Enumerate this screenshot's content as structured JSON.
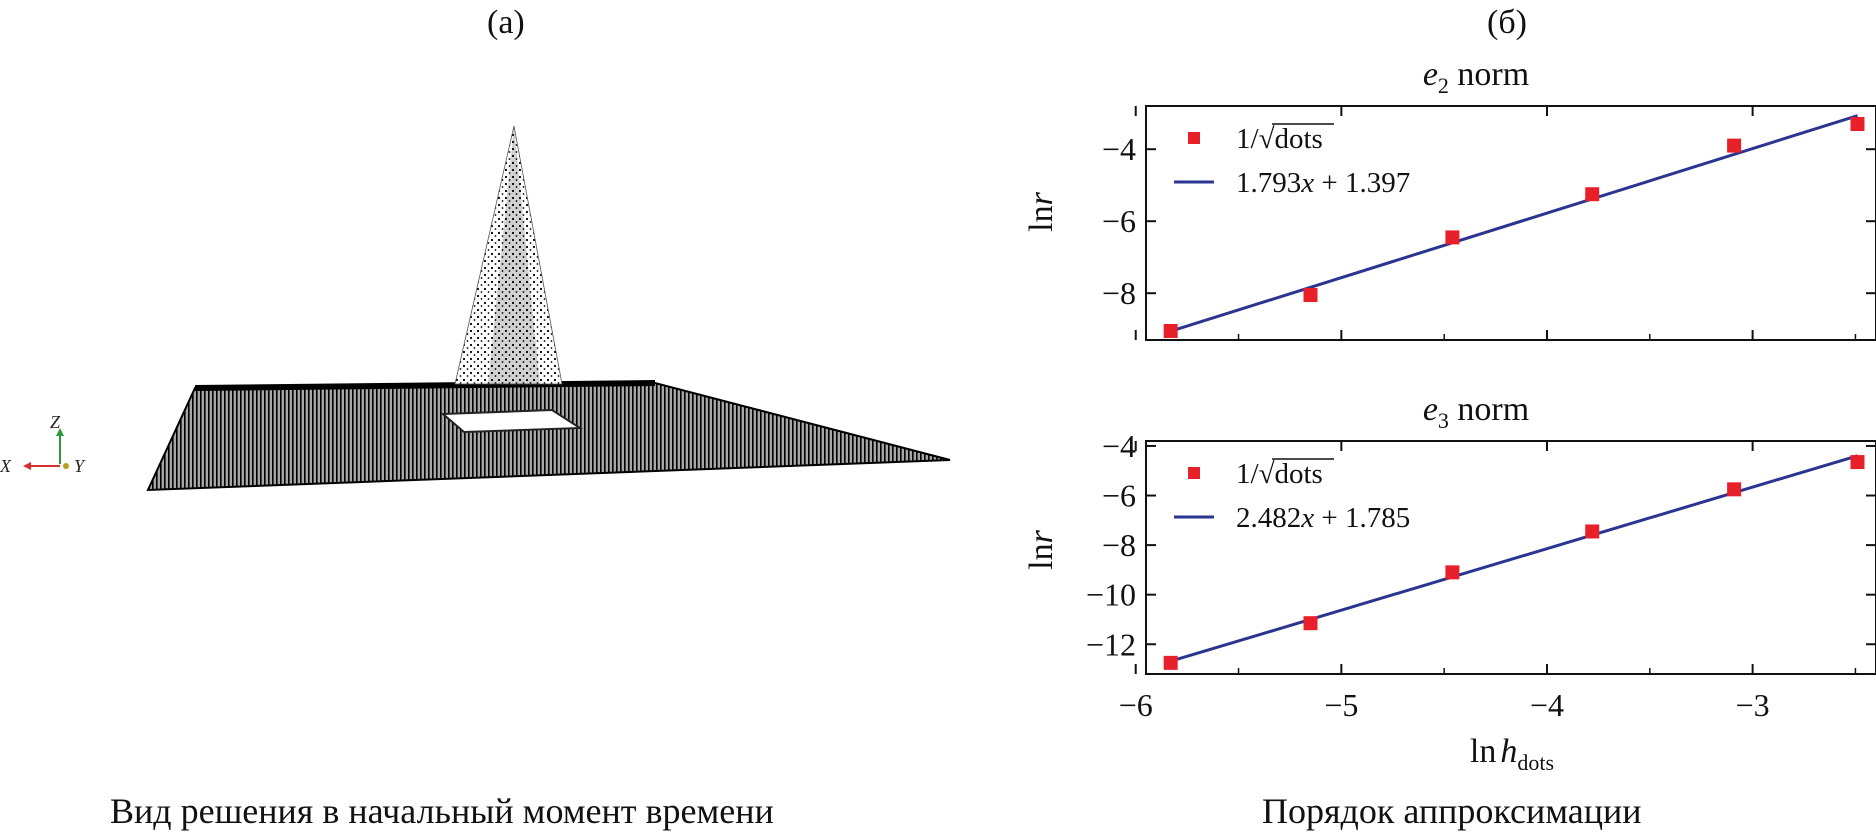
{
  "panel_a": {
    "label": "(а)",
    "caption": "Вид решения в начальный момент времени",
    "axes": {
      "z": "Z",
      "x": "X",
      "y": "Y"
    }
  },
  "panel_b": {
    "label": "(б)",
    "caption": "Порядок аппроксимации",
    "xlabel_main": "ln",
    "xlabel_h": "h",
    "xlabel_sub": "dots"
  },
  "colors": {
    "points": "#e8202a",
    "line": "#2a3590",
    "axis": "#111111"
  },
  "chart_data": [
    {
      "type": "scatter",
      "title_main": "e",
      "title_sub": "2",
      "title_rest": " norm",
      "ylabel": "ln r",
      "xlim": [
        -5.95,
        -2.4
      ],
      "ylim": [
        -9.3,
        -2.8
      ],
      "yticks": [
        -8,
        -6,
        -4
      ],
      "ytick_labels": [
        "−8",
        "−6",
        "−4"
      ],
      "xticks": [
        -6,
        -5,
        -4,
        -3
      ],
      "series": [
        {
          "name": "1/√dots",
          "kind": "points",
          "x": [
            -5.83,
            -5.15,
            -4.46,
            -3.78,
            -3.09,
            -2.49
          ],
          "y": [
            -9.05,
            -8.05,
            -6.45,
            -5.25,
            -3.9,
            -3.3
          ]
        },
        {
          "name": "1.793x + 1.397",
          "kind": "line",
          "slope": 1.793,
          "intercept": 1.397,
          "x_range": [
            -5.83,
            -2.49
          ]
        }
      ],
      "legend": {
        "placement": "top-left",
        "points_label_pre": "1/",
        "points_label_root": "√",
        "points_label_over": "dots",
        "line_label_num": "1.793",
        "line_label_var": "x",
        "line_label_rest": " + 1.397"
      }
    },
    {
      "type": "scatter",
      "title_main": "e",
      "title_sub": "3",
      "title_rest": " norm",
      "ylabel": "ln r",
      "xlim": [
        -5.95,
        -2.4
      ],
      "ylim": [
        -13.2,
        -3.8
      ],
      "yticks": [
        -12,
        -10,
        -8,
        -6,
        -4
      ],
      "ytick_labels": [
        "−12",
        "−10",
        "−8",
        "−6",
        "−4"
      ],
      "xticks": [
        -6,
        -5,
        -4,
        -3
      ],
      "xtick_labels": [
        "−6",
        "−5",
        "−4",
        "−3"
      ],
      "series": [
        {
          "name": "1/√dots",
          "kind": "points",
          "x": [
            -5.83,
            -5.15,
            -4.46,
            -3.78,
            -3.09,
            -2.49
          ],
          "y": [
            -12.75,
            -11.15,
            -9.1,
            -7.45,
            -5.75,
            -4.65
          ]
        },
        {
          "name": "2.482x + 1.785",
          "kind": "line",
          "slope": 2.482,
          "intercept": 1.785,
          "x_range": [
            -5.83,
            -2.49
          ]
        }
      ],
      "legend": {
        "placement": "top-left",
        "points_label_pre": "1/",
        "points_label_root": "√",
        "points_label_over": "dots",
        "line_label_num": "2.482",
        "line_label_var": "x",
        "line_label_rest": " + 1.785"
      }
    }
  ]
}
